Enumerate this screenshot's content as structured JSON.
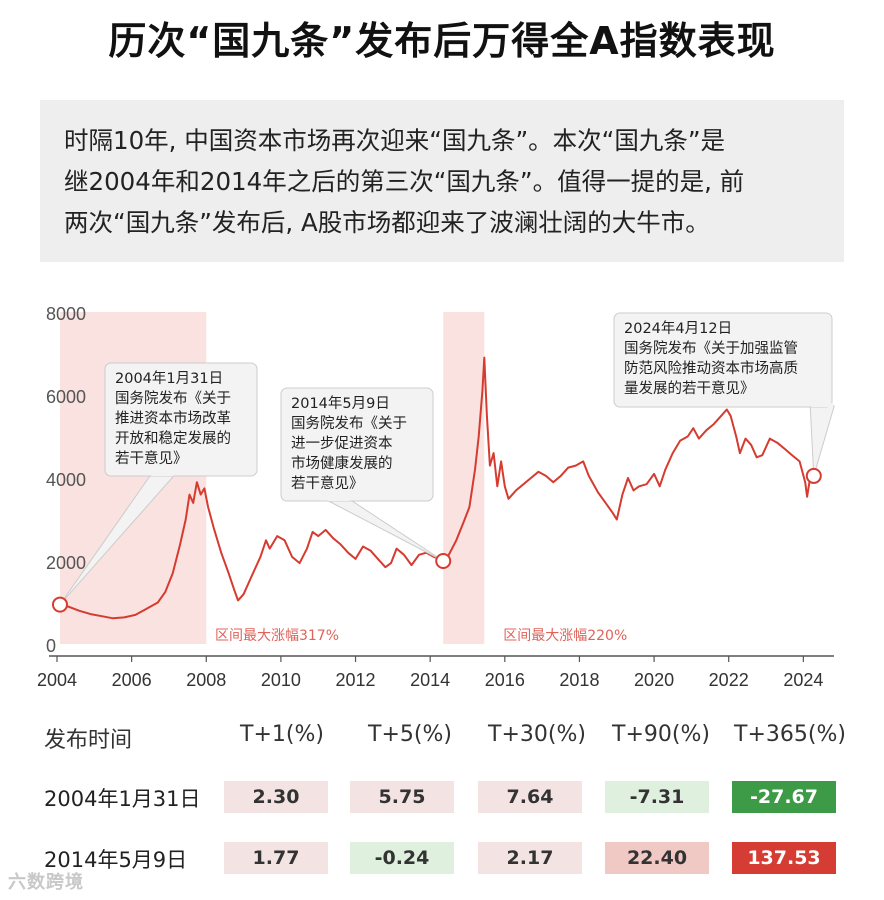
{
  "title": "历次“国九条”发布后万得全A指数表现",
  "intro": {
    "lines": [
      "时隔10年, 中国资本市场再次迎来“国九条”。本次“国九条”是",
      "继2004年和2014年之后的第三次“国九条”。值得一提的是, 前",
      "两次“国九条”发布后, A股市场都迎来了波澜壮阔的大牛市。"
    ]
  },
  "chart_data": {
    "type": "line",
    "title": "",
    "xlabel": "",
    "ylabel": "",
    "xlim": [
      2004,
      2024.5
    ],
    "ylim": [
      0,
      8000
    ],
    "x_ticks": [
      "2004",
      "2006",
      "2008",
      "2010",
      "2012",
      "2014",
      "2016",
      "2018",
      "2020",
      "2022",
      "2024"
    ],
    "y_ticks": [
      "0",
      "2000",
      "4000",
      "6000",
      "8000"
    ],
    "grid": false,
    "series": [
      {
        "color": "#d63b30",
        "points": [
          [
            2004.08,
            950
          ],
          [
            2004.3,
            900
          ],
          [
            2004.6,
            800
          ],
          [
            2004.9,
            720
          ],
          [
            2005.2,
            670
          ],
          [
            2005.5,
            620
          ],
          [
            2005.8,
            640
          ],
          [
            2006.1,
            700
          ],
          [
            2006.4,
            850
          ],
          [
            2006.7,
            1000
          ],
          [
            2006.9,
            1250
          ],
          [
            2007.1,
            1700
          ],
          [
            2007.3,
            2400
          ],
          [
            2007.45,
            3000
          ],
          [
            2007.55,
            3600
          ],
          [
            2007.65,
            3400
          ],
          [
            2007.75,
            3900
          ],
          [
            2007.85,
            3600
          ],
          [
            2007.95,
            3750
          ],
          [
            2008.05,
            3300
          ],
          [
            2008.2,
            2800
          ],
          [
            2008.4,
            2200
          ],
          [
            2008.6,
            1700
          ],
          [
            2008.75,
            1300
          ],
          [
            2008.85,
            1050
          ],
          [
            2009.0,
            1200
          ],
          [
            2009.2,
            1600
          ],
          [
            2009.45,
            2100
          ],
          [
            2009.6,
            2500
          ],
          [
            2009.7,
            2300
          ],
          [
            2009.9,
            2600
          ],
          [
            2010.1,
            2500
          ],
          [
            2010.3,
            2100
          ],
          [
            2010.5,
            1950
          ],
          [
            2010.7,
            2300
          ],
          [
            2010.85,
            2700
          ],
          [
            2011.0,
            2600
          ],
          [
            2011.2,
            2750
          ],
          [
            2011.4,
            2550
          ],
          [
            2011.6,
            2400
          ],
          [
            2011.8,
            2200
          ],
          [
            2012.0,
            2050
          ],
          [
            2012.2,
            2350
          ],
          [
            2012.4,
            2250
          ],
          [
            2012.6,
            2050
          ],
          [
            2012.8,
            1850
          ],
          [
            2012.95,
            1950
          ],
          [
            2013.1,
            2300
          ],
          [
            2013.3,
            2150
          ],
          [
            2013.5,
            1900
          ],
          [
            2013.7,
            2150
          ],
          [
            2013.9,
            2200
          ],
          [
            2014.1,
            2100
          ],
          [
            2014.25,
            2050
          ],
          [
            2014.35,
            2000
          ],
          [
            2014.5,
            2150
          ],
          [
            2014.7,
            2500
          ],
          [
            2014.9,
            2950
          ],
          [
            2015.05,
            3300
          ],
          [
            2015.2,
            4200
          ],
          [
            2015.3,
            5000
          ],
          [
            2015.4,
            6100
          ],
          [
            2015.45,
            6900
          ],
          [
            2015.52,
            5500
          ],
          [
            2015.6,
            4300
          ],
          [
            2015.7,
            4600
          ],
          [
            2015.8,
            3800
          ],
          [
            2015.9,
            4400
          ],
          [
            2016.0,
            3800
          ],
          [
            2016.1,
            3500
          ],
          [
            2016.3,
            3700
          ],
          [
            2016.5,
            3850
          ],
          [
            2016.7,
            4000
          ],
          [
            2016.9,
            4150
          ],
          [
            2017.1,
            4050
          ],
          [
            2017.3,
            3900
          ],
          [
            2017.5,
            4050
          ],
          [
            2017.7,
            4250
          ],
          [
            2017.9,
            4300
          ],
          [
            2018.1,
            4400
          ],
          [
            2018.25,
            4050
          ],
          [
            2018.5,
            3650
          ],
          [
            2018.7,
            3400
          ],
          [
            2018.9,
            3150
          ],
          [
            2019.0,
            3000
          ],
          [
            2019.15,
            3600
          ],
          [
            2019.3,
            4000
          ],
          [
            2019.45,
            3700
          ],
          [
            2019.6,
            3800
          ],
          [
            2019.8,
            3850
          ],
          [
            2020.0,
            4100
          ],
          [
            2020.15,
            3800
          ],
          [
            2020.3,
            4200
          ],
          [
            2020.5,
            4600
          ],
          [
            2020.7,
            4900
          ],
          [
            2020.9,
            5000
          ],
          [
            2021.05,
            5200
          ],
          [
            2021.2,
            4950
          ],
          [
            2021.4,
            5150
          ],
          [
            2021.6,
            5300
          ],
          [
            2021.8,
            5500
          ],
          [
            2021.95,
            5650
          ],
          [
            2022.05,
            5500
          ],
          [
            2022.2,
            5000
          ],
          [
            2022.3,
            4600
          ],
          [
            2022.45,
            4950
          ],
          [
            2022.6,
            4800
          ],
          [
            2022.75,
            4500
          ],
          [
            2022.9,
            4550
          ],
          [
            2023.1,
            4950
          ],
          [
            2023.3,
            4850
          ],
          [
            2023.5,
            4700
          ],
          [
            2023.7,
            4550
          ],
          [
            2023.9,
            4400
          ],
          [
            2024.05,
            3900
          ],
          [
            2024.1,
            3550
          ],
          [
            2024.18,
            4000
          ],
          [
            2024.28,
            4050
          ]
        ]
      }
    ],
    "shaded_periods": [
      {
        "start": 2004.08,
        "end": 2008.0,
        "label": "区间最大涨幅317%"
      },
      {
        "start": 2014.35,
        "end": 2015.45,
        "label": "区间最大涨幅220%"
      }
    ],
    "annotations": [
      {
        "x": 2004.08,
        "y": 950,
        "lines": [
          "2004年1月31日",
          "国务院发布《关于",
          "推进资本市场改革",
          "开放和稳定发展的",
          "若干意见》"
        ]
      },
      {
        "x": 2014.35,
        "y": 2000,
        "lines": [
          "2014年5月9日",
          "国务院发布《关于",
          "进一步促进资本",
          "市场健康发展的",
          "若干意见》"
        ]
      },
      {
        "x": 2024.28,
        "y": 4050,
        "lines": [
          "2024年4月12日",
          "国务院发布《关于加强监管",
          "防范风险推动资本市场高质",
          "量发展的若干意见》"
        ]
      }
    ]
  },
  "table": {
    "headers": [
      "发布时间",
      "T+1(%)",
      "T+5(%)",
      "T+30(%)",
      "T+90(%)",
      "T+365(%)"
    ],
    "rows": [
      {
        "date": "2004年1月31日",
        "values": [
          "2.30",
          "5.75",
          "7.64",
          "-7.31",
          "-27.67"
        ]
      },
      {
        "date": "2014年5月9日",
        "values": [
          "1.77",
          "-0.24",
          "2.17",
          "22.40",
          "137.53"
        ]
      }
    ],
    "cell_colors": [
      [
        "#f4e3e3",
        "#f4e3e3",
        "#f4e3e3",
        "#dff0df",
        "#3d9a46"
      ],
      [
        "#f4e3e3",
        "#dff0df",
        "#f4e3e3",
        "#f0c8c4",
        "#d43c34"
      ]
    ],
    "cell_text_colors": [
      [
        "#333333",
        "#333333",
        "#333333",
        "#333333",
        "#ffffff"
      ],
      [
        "#333333",
        "#333333",
        "#333333",
        "#333333",
        "#ffffff"
      ]
    ]
  },
  "watermark": "六数跨境"
}
